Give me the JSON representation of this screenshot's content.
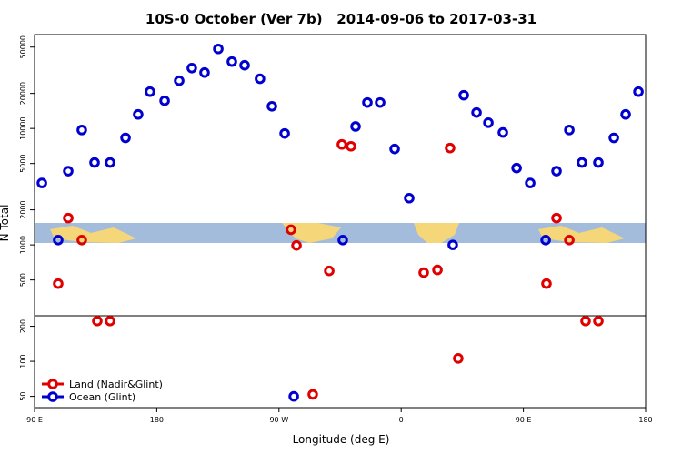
{
  "chart_data": {
    "type": "scatter",
    "title": "10S-0 October (Ver 7b)   2014-09-06 to 2017-03-31",
    "x_label": "Longitude (deg E)",
    "y_label": "N Total",
    "log_y": true,
    "legend": "bottom-left",
    "xlim": [
      90,
      540
    ],
    "xticks": [
      {
        "value": 90,
        "label": "90 E"
      },
      {
        "value": 180,
        "label": "180"
      },
      {
        "value": 270,
        "label": "90 W"
      },
      {
        "value": 360,
        "label": "0"
      },
      {
        "value": 450,
        "label": "90 E"
      },
      {
        "value": 540,
        "label": "180"
      }
    ],
    "ylim": [
      40,
      64000
    ],
    "yticks": [
      50,
      100,
      200,
      500,
      1000,
      2000,
      5000,
      10000,
      20000,
      50000
    ],
    "series": [
      {
        "name": "Land (Nadir&Glint)",
        "color": "#e00000",
        "x": [
          107.4,
          114.8,
          124.8,
          136.2,
          145.6,
          278.8,
          282.9,
          294.9,
          307,
          316.3,
          323,
          376.6,
          386.7,
          396,
          402,
          467,
          474.4,
          483.8,
          495.8,
          505.2
        ],
        "values": [
          465,
          1700,
          1100,
          222,
          222,
          1350,
          990,
          52,
          598,
          7290,
          7030,
          578,
          610,
          6790,
          106,
          465,
          1700,
          1100,
          222,
          222
        ]
      },
      {
        "name": "Ocean (Glint)",
        "color": "#0000d0",
        "x": [
          95.4,
          107.4,
          114.8,
          124.8,
          134.2,
          145.6,
          157,
          166.3,
          175,
          185.8,
          196.5,
          205.8,
          215.2,
          225.3,
          235.3,
          244.7,
          256,
          264.8,
          274.2,
          280.9,
          317,
          326.4,
          335.1,
          344.5,
          355.2,
          365.9,
          398,
          406.1,
          415.5,
          424.2,
          434.9,
          445,
          455,
          466.4,
          474.4,
          483.8,
          493.1,
          505.2,
          516.6,
          525.3,
          534.7
        ],
        "values": [
          3400,
          1100,
          4300,
          9700,
          5100,
          5100,
          8300,
          13200,
          20700,
          17300,
          25700,
          33000,
          30200,
          48200,
          37500,
          34900,
          26700,
          15500,
          9060,
          50,
          1100,
          10400,
          16700,
          16700,
          6670,
          2520,
          1000,
          19300,
          13700,
          11200,
          9230,
          4570,
          3400,
          1100,
          4300,
          9700,
          5100,
          5100,
          8300,
          13200,
          20700
        ]
      }
    ]
  }
}
